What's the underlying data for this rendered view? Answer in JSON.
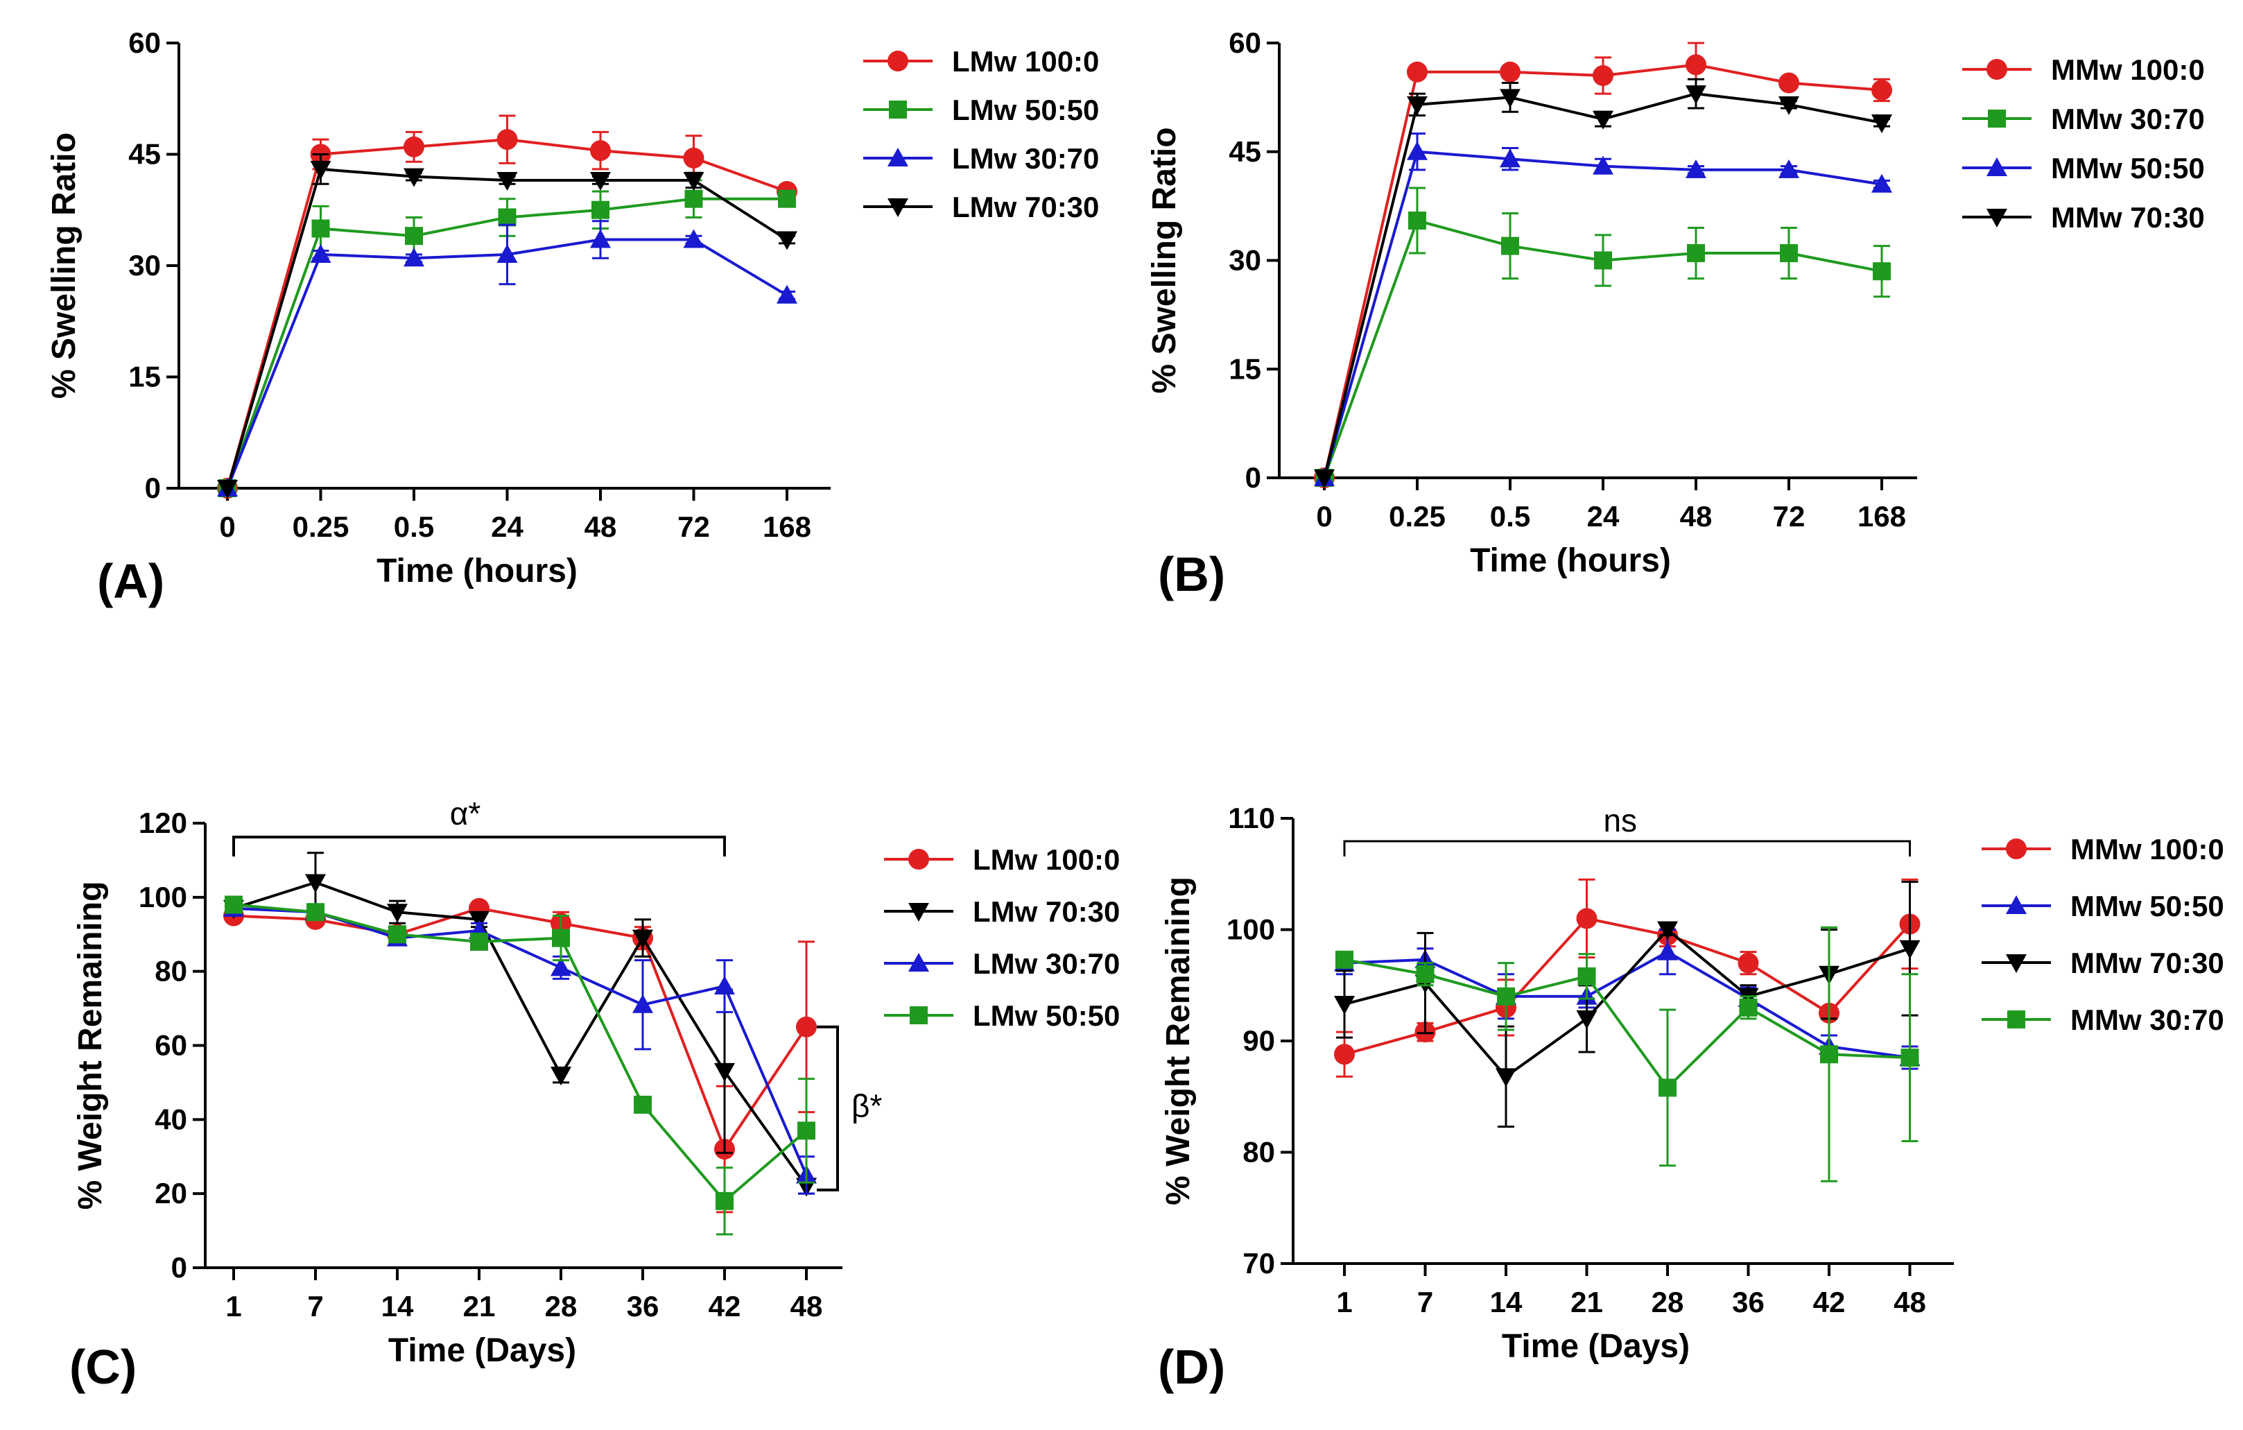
{
  "colors": {
    "red": "#e02020",
    "green": "#1f9a1f",
    "blue": "#1a1ad0",
    "black": "#000000"
  },
  "chart_data": [
    {
      "panel": "(A)",
      "type": "line",
      "xlabel": "Time (hours)",
      "ylabel": "% Swelling Ratio",
      "categories": [
        "0",
        "0.25",
        "0.5",
        "24",
        "48",
        "72",
        "168"
      ],
      "ylim": [
        0,
        60
      ],
      "yticks": [
        0,
        15,
        30,
        45,
        60
      ],
      "legend_position": "right",
      "series": [
        {
          "name": "LMw 100:0",
          "color": "#e02020",
          "marker": "circle",
          "values": [
            0,
            45,
            46,
            47,
            45.5,
            44.5,
            40
          ],
          "errors": [
            0,
            2,
            2,
            3.2,
            2.5,
            3,
            0.5
          ]
        },
        {
          "name": "LMw 50:50",
          "color": "#1f9a1f",
          "marker": "square",
          "values": [
            0,
            35,
            34,
            36.5,
            37.5,
            39,
            39
          ],
          "errors": [
            0,
            3,
            2.5,
            2.5,
            2.5,
            2.5,
            1
          ]
        },
        {
          "name": "LMw 30:70",
          "color": "#1a1ad0",
          "marker": "triangle-up",
          "values": [
            0,
            31.5,
            31,
            31.5,
            33.5,
            33.5,
            26
          ],
          "errors": [
            0,
            0.5,
            0.5,
            4,
            2.5,
            0.5,
            0.5
          ]
        },
        {
          "name": "LMw 70:30",
          "color": "#000000",
          "marker": "triangle-down",
          "values": [
            0,
            43,
            42,
            41.5,
            41.5,
            41.5,
            33.5
          ],
          "errors": [
            0,
            2,
            0.5,
            0.5,
            0.5,
            1,
            0.5
          ]
        }
      ]
    },
    {
      "panel": "(B)",
      "type": "line",
      "xlabel": "Time (hours)",
      "ylabel": "% Swelling Ratio",
      "categories": [
        "0",
        "0.25",
        "0.5",
        "24",
        "48",
        "72",
        "168"
      ],
      "ylim": [
        0,
        60
      ],
      "yticks": [
        0,
        15,
        30,
        45,
        60
      ],
      "legend_position": "right",
      "series": [
        {
          "name": "MMw 100:0",
          "color": "#e02020",
          "marker": "circle",
          "values": [
            0,
            56,
            56,
            55.5,
            57,
            54.5,
            53.5
          ],
          "errors": [
            0,
            0.5,
            0.5,
            2.5,
            3,
            0.5,
            1.5
          ]
        },
        {
          "name": "MMw 30:70",
          "color": "#1f9a1f",
          "marker": "square",
          "values": [
            0,
            35.5,
            32,
            30,
            31,
            31,
            28.5
          ],
          "errors": [
            0,
            4.5,
            4.5,
            3.5,
            3.5,
            3.5,
            3.5
          ]
        },
        {
          "name": "MMw 50:50",
          "color": "#1a1ad0",
          "marker": "triangle-up",
          "values": [
            0,
            45,
            44,
            43,
            42.5,
            42.5,
            40.5
          ],
          "errors": [
            0,
            2.5,
            1.5,
            1,
            0.5,
            0.5,
            0.5
          ]
        },
        {
          "name": "MMw 70:30",
          "color": "#000000",
          "marker": "triangle-down",
          "values": [
            0,
            51.5,
            52.5,
            49.5,
            53,
            51.5,
            49
          ],
          "errors": [
            0,
            1.5,
            2,
            1,
            2,
            0.5,
            0.5
          ]
        }
      ]
    },
    {
      "panel": "(C)",
      "type": "line",
      "xlabel": "Time (Days)",
      "ylabel": "% Weight Remaining",
      "categories": [
        "1",
        "7",
        "14",
        "21",
        "28",
        "36",
        "42",
        "48"
      ],
      "ylim": [
        0,
        120
      ],
      "yticks": [
        0,
        20,
        40,
        60,
        80,
        100,
        120
      ],
      "legend_position": "right",
      "annotations": [
        "α*",
        "β*"
      ],
      "series": [
        {
          "name": "LMw 100:0",
          "color": "#e02020",
          "marker": "circle",
          "values": [
            95,
            94,
            90,
            97,
            93,
            89,
            32,
            65
          ],
          "errors": [
            1,
            1,
            1.5,
            1,
            3,
            3,
            17,
            23
          ]
        },
        {
          "name": "LMw 70:30",
          "color": "#000000",
          "marker": "triangle-down",
          "values": [
            97,
            104,
            96,
            94,
            52,
            89,
            53,
            22
          ],
          "errors": [
            1,
            8,
            3,
            2,
            2,
            5,
            22,
            2
          ]
        },
        {
          "name": "LMw 30:70",
          "color": "#1a1ad0",
          "marker": "triangle-up",
          "values": [
            97,
            96,
            89,
            91,
            81,
            71,
            76,
            25
          ],
          "errors": [
            1,
            2,
            1,
            2,
            3,
            12,
            7,
            5
          ]
        },
        {
          "name": "LMw 50:50",
          "color": "#1f9a1f",
          "marker": "square",
          "values": [
            98,
            96,
            90,
            88,
            89,
            44,
            18,
            37
          ],
          "errors": [
            1,
            1,
            2,
            2,
            6,
            2,
            9,
            14
          ]
        }
      ]
    },
    {
      "panel": "(D)",
      "type": "line",
      "xlabel": "Time (Days)",
      "ylabel": "% Weight Remaining",
      "categories": [
        "1",
        "7",
        "14",
        "21",
        "28",
        "36",
        "42",
        "48"
      ],
      "ylim": [
        70,
        110
      ],
      "yticks": [
        70,
        80,
        90,
        100,
        110
      ],
      "legend_position": "right",
      "annotations": [
        "ns"
      ],
      "series": [
        {
          "name": "MMw 100:0",
          "color": "#e02020",
          "marker": "circle",
          "values": [
            88.8,
            90.8,
            93,
            101,
            99.5,
            97,
            92.5,
            100.5
          ],
          "errors": [
            2,
            0.8,
            2.5,
            3.5,
            1,
            1,
            0.5,
            4
          ]
        },
        {
          "name": "MMw 50:50",
          "color": "#1a1ad0",
          "marker": "triangle-up",
          "values": [
            97,
            97.3,
            94,
            94,
            98,
            93.8,
            89.5,
            88.5
          ],
          "errors": [
            1,
            1,
            2,
            1,
            2,
            1,
            1,
            1
          ]
        },
        {
          "name": "MMw 70:30",
          "color": "#000000",
          "marker": "triangle-down",
          "values": [
            93.3,
            95.2,
            86.8,
            92,
            100,
            94,
            96,
            98.3
          ],
          "errors": [
            3,
            4.5,
            4.5,
            3,
            0.5,
            1,
            4,
            6
          ]
        },
        {
          "name": "MMw 30:70",
          "color": "#1f9a1f",
          "marker": "square",
          "values": [
            97.3,
            96,
            94,
            95.8,
            85.8,
            93,
            88.8,
            88.5
          ],
          "errors": [
            0.5,
            1,
            3,
            2,
            7,
            1,
            11.4,
            7.5
          ]
        }
      ]
    }
  ]
}
